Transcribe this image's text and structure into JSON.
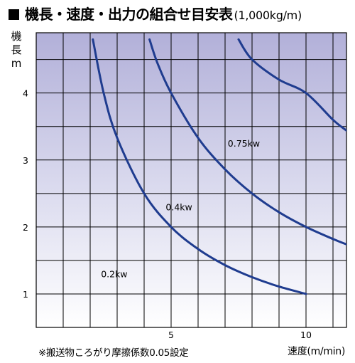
{
  "title": {
    "main": "機長・速度・出力の組合せ目安表",
    "unit": "(1,000kg/m)"
  },
  "footnote": "※搬送物ころがり摩擦係数0.05設定",
  "chart_data": {
    "type": "line",
    "title": "機長・速度・出力の組合せ目安表(1,000kg/m)",
    "xlabel": "速度(m/min)",
    "ylabel": "機長m",
    "xlim": [
      0,
      11.5
    ],
    "ylim": [
      0.5,
      4.9
    ],
    "xticks": [
      5,
      10
    ],
    "yticks": [
      1,
      2,
      3,
      4
    ],
    "grid": true,
    "series": [
      {
        "name": "0.2kw",
        "x": [
          2.1,
          2.5,
          3,
          4,
          5,
          6,
          7,
          8,
          9,
          10
        ],
        "y": [
          4.8,
          4.0,
          3.33,
          2.5,
          2.0,
          1.67,
          1.43,
          1.25,
          1.11,
          1.0
        ],
        "label_at": [
          2.4,
          1.25
        ]
      },
      {
        "name": "0.4kw",
        "x": [
          4.2,
          4.5,
          5,
          6,
          7,
          8,
          9,
          10,
          11,
          11.5
        ],
        "y": [
          4.8,
          4.44,
          4.0,
          3.33,
          2.86,
          2.5,
          2.22,
          2.0,
          1.82,
          1.74
        ],
        "label_at": [
          4.8,
          2.25
        ]
      },
      {
        "name": "0.75kw",
        "x": [
          7.5,
          8,
          9,
          10,
          11,
          11.5
        ],
        "y": [
          4.8,
          4.5,
          4.2,
          4.0,
          3.6,
          3.44
        ],
        "label_at": [
          7.1,
          3.2
        ]
      }
    ]
  }
}
